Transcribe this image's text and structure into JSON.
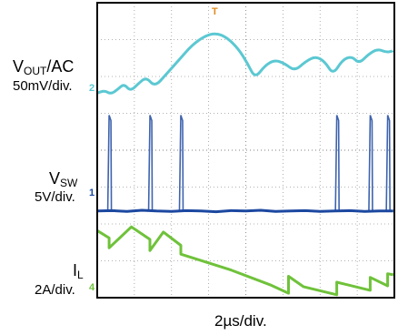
{
  "chart_data": {
    "type": "line",
    "title": "",
    "xlabel": "",
    "ylabel": "",
    "time_scale": "2µs/div.",
    "x_divisions": 8,
    "y_divisions": 8,
    "grid": true,
    "colors": {
      "vout": "#5bc8d2",
      "vsw": "#1c48a0",
      "il": "#6fc23a",
      "grid": "#9a9a9a",
      "frame": "#000000",
      "plot_bg": "#ffffff"
    },
    "channels": [
      {
        "key": "vout",
        "name_main": "V",
        "name_sub": "OUT",
        "name_suffix": "/AC",
        "scale": "50mV/div.",
        "marker": "2",
        "color": "#5bc8d2",
        "x": [
          0.0,
          0.2,
          0.37,
          0.55,
          0.72,
          0.9,
          1.12,
          1.32,
          1.55,
          1.85,
          2.2,
          2.55,
          2.9,
          3.2,
          3.5,
          3.8,
          4.05,
          4.25,
          4.52,
          4.78,
          5.05,
          5.32,
          5.6,
          5.88,
          6.13,
          6.35,
          6.6,
          6.85,
          7.05,
          7.3,
          7.55,
          7.8,
          7.97
        ],
        "y": [
          5.55,
          5.62,
          5.52,
          5.65,
          5.8,
          5.6,
          5.82,
          5.98,
          5.72,
          6.05,
          6.45,
          6.85,
          7.1,
          7.18,
          7.05,
          6.75,
          6.35,
          5.95,
          6.3,
          6.45,
          6.35,
          6.15,
          6.4,
          6.55,
          6.4,
          6.05,
          6.45,
          6.55,
          6.35,
          6.6,
          6.75,
          6.65,
          6.7
        ]
      },
      {
        "key": "vsw",
        "name_main": "V",
        "name_sub": "SW",
        "name_suffix": "",
        "scale": "5V/div.",
        "marker": "1",
        "color": "#1c48a0",
        "baseline": 2.35,
        "x": [
          0.0,
          0.4,
          0.8,
          1.2,
          1.6,
          2.0,
          2.4,
          2.8,
          3.2,
          3.6,
          4.0,
          4.4,
          4.8,
          5.2,
          5.6,
          6.0,
          6.4,
          6.8,
          7.2,
          7.6,
          7.97
        ],
        "y": [
          2.35,
          2.36,
          2.34,
          2.37,
          2.35,
          2.34,
          2.36,
          2.35,
          2.33,
          2.36,
          2.35,
          2.37,
          2.34,
          2.35,
          2.36,
          2.34,
          2.35,
          2.36,
          2.34,
          2.35,
          2.35
        ],
        "spikes_x": [
          0.32,
          1.42,
          2.25,
          6.45,
          7.35,
          7.82
        ],
        "spike_peak": 4.95
      },
      {
        "key": "il",
        "name_main": "I",
        "name_sub": "L",
        "name_suffix": "",
        "scale": "2A/div.",
        "marker": "4",
        "color": "#6fc23a",
        "x": [
          0.0,
          0.32,
          0.32,
          0.92,
          1.42,
          1.42,
          1.78,
          2.25,
          2.25,
          3.6,
          4.65,
          5.15,
          5.15,
          5.55,
          6.45,
          6.45,
          7.35,
          7.35,
          7.82,
          7.82,
          7.97
        ],
        "y": [
          1.82,
          1.62,
          1.35,
          1.92,
          1.58,
          1.28,
          1.78,
          1.42,
          1.18,
          0.75,
          0.35,
          0.12,
          0.58,
          0.3,
          0.08,
          0.42,
          0.2,
          0.55,
          0.32,
          0.65,
          0.62
        ]
      }
    ],
    "trigger_marker": "T"
  }
}
